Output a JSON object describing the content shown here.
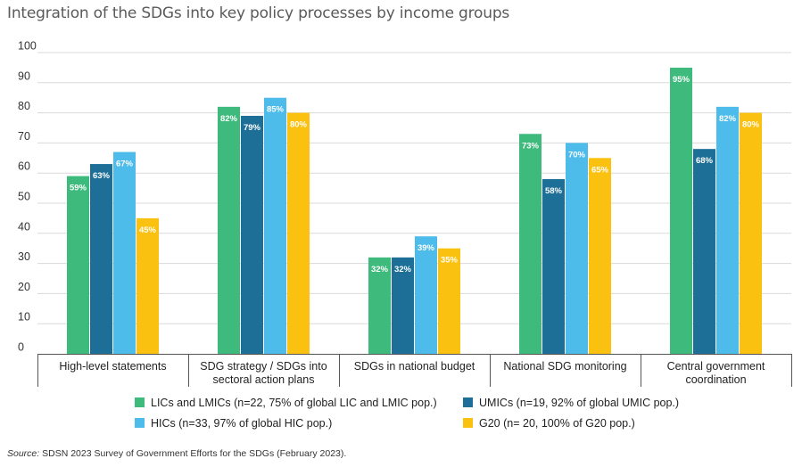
{
  "chart_data": {
    "type": "bar",
    "title": "Integration of the SDGs into key policy processes by income groups",
    "ylim": [
      0,
      100
    ],
    "yticks": [
      0,
      10,
      20,
      30,
      40,
      50,
      60,
      70,
      80,
      90,
      100
    ],
    "grid": true,
    "categories": [
      [
        "High-level statements"
      ],
      [
        "SDG strategy / SDGs into",
        "sectoral action plans"
      ],
      [
        "SDGs in national budget"
      ],
      [
        "National SDG monitoring"
      ],
      [
        "Central government",
        "coordination"
      ]
    ],
    "series": [
      {
        "name": "LICs and LMICs (n=22, 75% of global LIC and LMIC pop.)",
        "color": "#3dba7c",
        "values": [
          59,
          82,
          32,
          73,
          95
        ],
        "labels": [
          "59%",
          "82%",
          "32%",
          "73%",
          "95%"
        ]
      },
      {
        "name": "UMICs (n=19, 92% of global UMIC pop.)",
        "color": "#1d6f98",
        "values": [
          63,
          79,
          32,
          58,
          68
        ],
        "labels": [
          "63%",
          "79%",
          "32%",
          "58%",
          "68%"
        ]
      },
      {
        "name": "HICs (n=33, 97% of global HIC pop.)",
        "color": "#4ebcea",
        "values": [
          67,
          85,
          39,
          70,
          82
        ],
        "labels": [
          "67%",
          "85%",
          "39%",
          "70%",
          "82%"
        ]
      },
      {
        "name": "G20 (n= 20, 100% of G20 pop.)",
        "color": "#fbc111",
        "values": [
          45,
          80,
          35,
          65,
          80
        ],
        "labels": [
          "45%",
          "80%",
          "35%",
          "65%",
          "80%"
        ]
      }
    ],
    "legend_position": "bottom"
  },
  "source": {
    "label": "Source:",
    "text": " SDSN 2023 Survey of Government Efforts for the SDGs (February 2023)."
  }
}
